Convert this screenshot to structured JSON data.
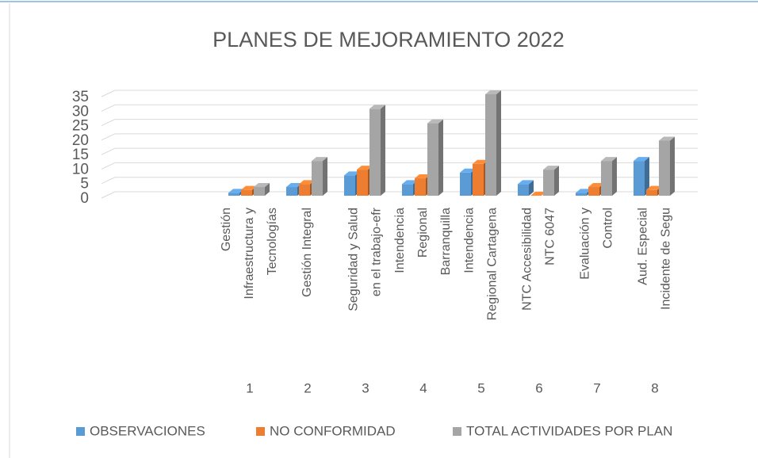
{
  "chart_data": {
    "type": "bar3d",
    "title": "PLANES DE MEJORAMIENTO 2022",
    "categories": [
      "Gestión Infraestructura y Tecnologías",
      "Gestión Integral",
      "Seguridad y Salud en el trabajo-efr",
      "Intendencia Regional Barranquilla",
      "Intendencia Regional Cartagena",
      "NTC Accesibilidad NTC 6047",
      "Evaluación y Control",
      "Aud. Especial Incidente de Segu"
    ],
    "category_numbers": [
      1,
      2,
      3,
      4,
      5,
      6,
      7,
      8
    ],
    "series": [
      {
        "name": "OBSERVACIONES",
        "color": "#5b9bd5",
        "values": [
          1,
          3,
          7,
          4,
          8,
          4,
          1,
          12
        ]
      },
      {
        "name": "NO CONFORMIDAD",
        "color": "#ed7d31",
        "values": [
          2,
          4,
          9,
          6,
          11,
          0,
          3,
          2
        ]
      },
      {
        "name": "TOTAL ACTIVIDADES POR PLAN",
        "color": "#a5a5a5",
        "values": [
          3,
          12,
          30,
          25,
          35,
          9,
          12,
          19
        ]
      }
    ],
    "ylim": [
      0,
      35
    ],
    "yticks": [
      0,
      5,
      10,
      15,
      20,
      25,
      30,
      35
    ],
    "grid": true,
    "legend": "bottom"
  }
}
